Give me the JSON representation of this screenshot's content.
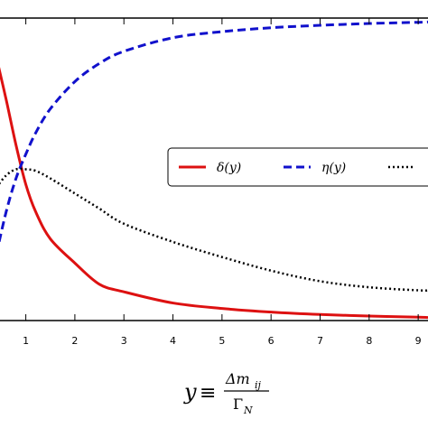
{
  "chart_data": {
    "type": "line",
    "title": "",
    "xlabel": {
      "lhs": "y",
      "equiv": "≡",
      "numerator": "Δm",
      "numerator_sub": "ij",
      "denominator": "Γ",
      "denominator_sub": "N"
    },
    "ylabel": "",
    "xlim": [
      0.4,
      9.2
    ],
    "ylim": [
      0,
      1.0
    ],
    "x_ticks": [
      1,
      2,
      3,
      4,
      5,
      6,
      7,
      8,
      9
    ],
    "x_tick_labels": [
      "1",
      "2",
      "3",
      "4",
      "5",
      "6",
      "7",
      "8",
      "9"
    ],
    "grid": false,
    "legend_position": "center-right",
    "series": [
      {
        "name": "δ(y)",
        "color": "#dd1111",
        "style": "solid",
        "x": [
          0.4,
          0.6,
          0.8,
          1.0,
          1.2,
          1.5,
          2.0,
          2.5,
          3.0,
          4.0,
          5.0,
          6.0,
          7.0,
          8.0,
          9.0,
          9.2
        ],
        "y": [
          0.87,
          0.73,
          0.58,
          0.45,
          0.36,
          0.27,
          0.19,
          0.12,
          0.095,
          0.058,
          0.04,
          0.028,
          0.02,
          0.015,
          0.011,
          0.01
        ]
      },
      {
        "name": "η(y)",
        "color": "#1111cc",
        "style": "dashed",
        "x": [
          0.4,
          0.6,
          0.8,
          1.0,
          1.2,
          1.5,
          2.0,
          2.5,
          3.0,
          4.0,
          5.0,
          6.0,
          7.0,
          8.0,
          9.0,
          9.2
        ],
        "y": [
          0.22,
          0.36,
          0.47,
          0.55,
          0.62,
          0.7,
          0.79,
          0.85,
          0.89,
          0.935,
          0.955,
          0.968,
          0.976,
          0.982,
          0.986,
          0.987
        ]
      },
      {
        "name": "",
        "color": "#000000",
        "style": "dotted",
        "x": [
          0.4,
          0.6,
          0.8,
          1.0,
          1.2,
          1.5,
          2.0,
          2.5,
          3.0,
          4.0,
          5.0,
          6.0,
          7.0,
          8.0,
          9.0,
          9.2
        ],
        "y": [
          0.44,
          0.48,
          0.5,
          0.5,
          0.495,
          0.47,
          0.42,
          0.37,
          0.32,
          0.26,
          0.21,
          0.165,
          0.13,
          0.11,
          0.1,
          0.1
        ]
      }
    ]
  }
}
